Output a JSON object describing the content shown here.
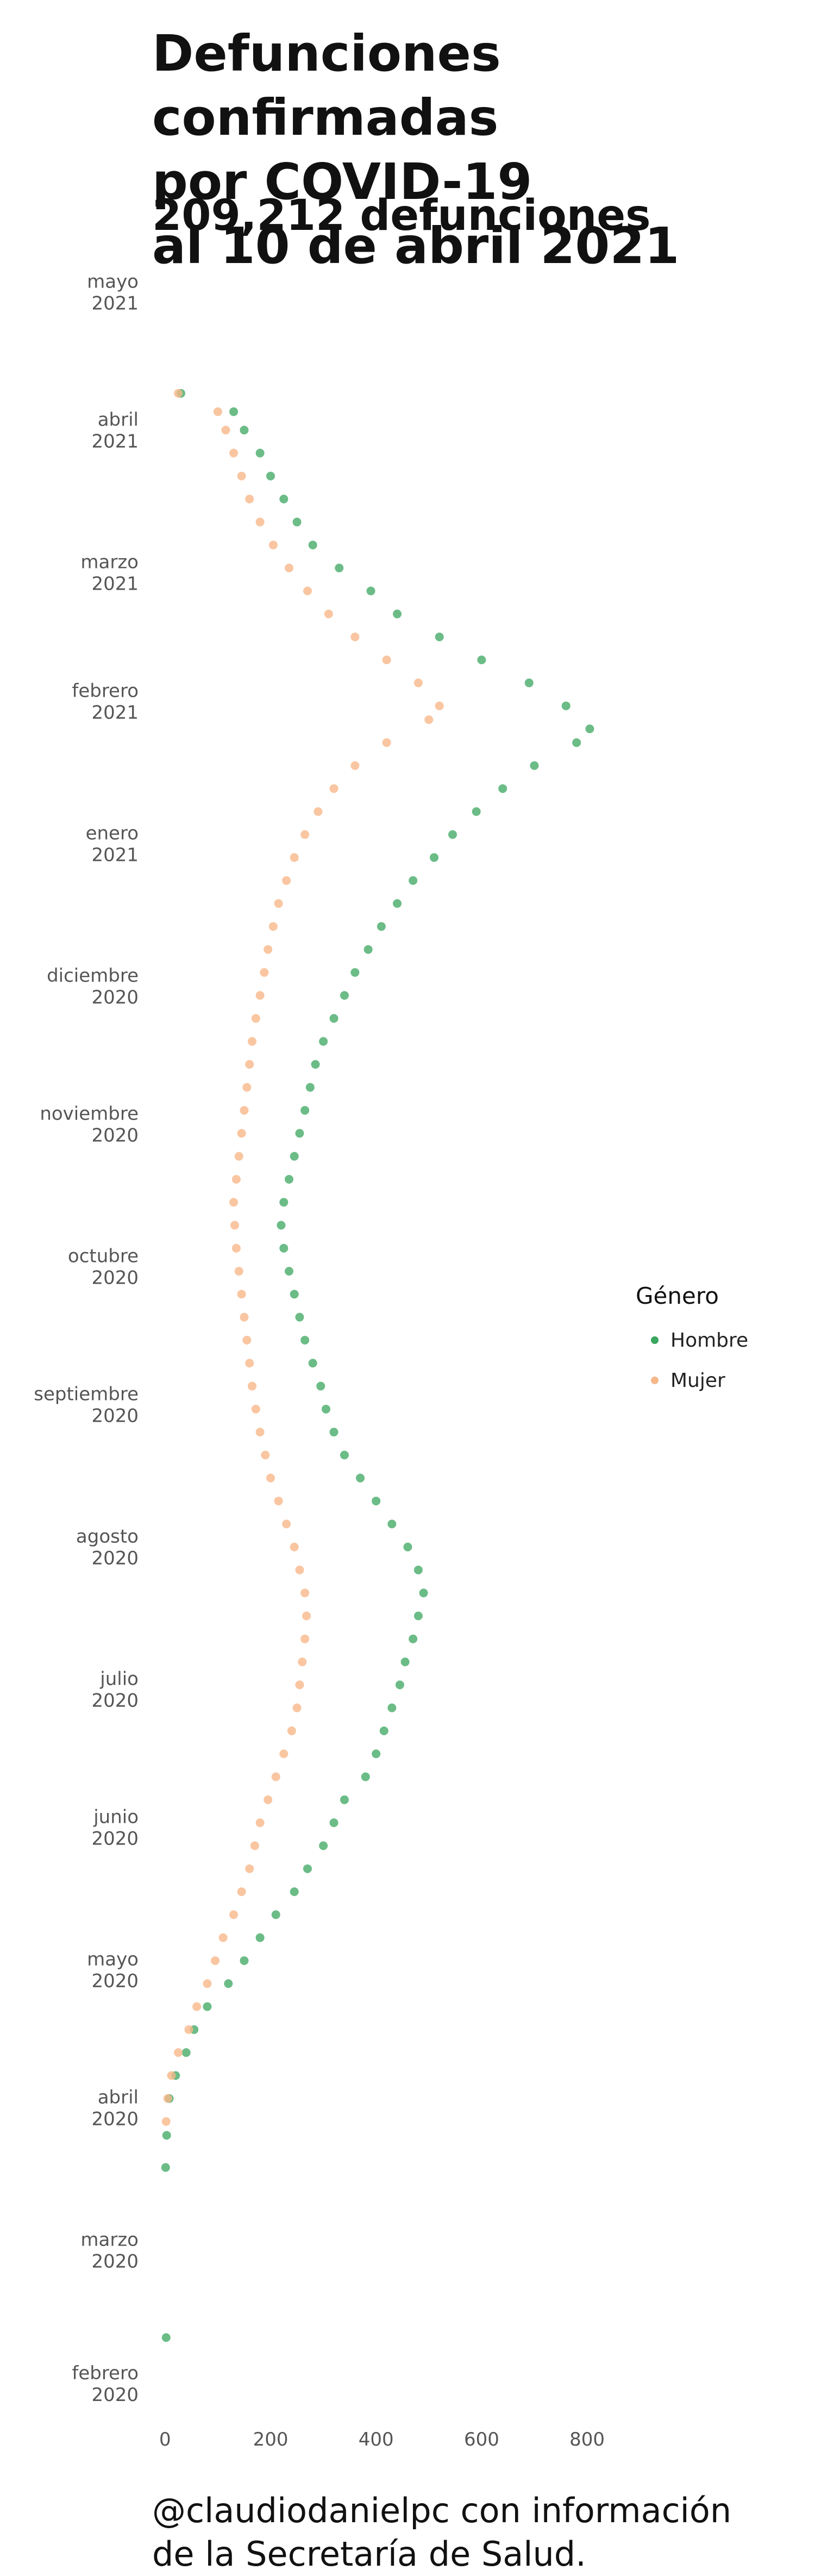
{
  "title": "Defunciones confirmadas por COVID-19 al 10 de abril 2021",
  "title_lines": [
    "Defunciones confirmadas",
    "por COVID-19",
    "al 10 de abril 2021"
  ],
  "subtitle": "209,212 defunciones",
  "caption_lines": [
    "@claudiodanielpc con información",
    "de la Secretaría de Salud."
  ],
  "colors": {
    "hombre": "#3aa65e",
    "mujer": "#f7b88a",
    "axis_text": "#555555"
  },
  "legend": {
    "title": "Género",
    "items": [
      "Hombre",
      "Mujer"
    ]
  },
  "chart_data": {
    "type": "scatter",
    "title": "",
    "xlabel": "",
    "ylabel": "",
    "xlim": [
      -40,
      820
    ],
    "ylim": [
      "2020-01-25",
      "2021-05-09"
    ],
    "x_ticks": [
      0,
      200,
      400,
      600,
      800
    ],
    "y_ticks": [
      {
        "date": "2020-02-01",
        "label": [
          "febrero",
          "2020"
        ]
      },
      {
        "date": "2020-03-01",
        "label": [
          "marzo",
          "2020"
        ]
      },
      {
        "date": "2020-04-01",
        "label": [
          "abril",
          "2020"
        ]
      },
      {
        "date": "2020-05-01",
        "label": [
          "mayo",
          "2020"
        ]
      },
      {
        "date": "2020-06-01",
        "label": [
          "junio",
          "2020"
        ]
      },
      {
        "date": "2020-07-01",
        "label": [
          "julio",
          "2020"
        ]
      },
      {
        "date": "2020-08-01",
        "label": [
          "agosto",
          "2020"
        ]
      },
      {
        "date": "2020-09-01",
        "label": [
          "septiembre",
          "2020"
        ]
      },
      {
        "date": "2020-10-01",
        "label": [
          "octubre",
          "2020"
        ]
      },
      {
        "date": "2020-11-01",
        "label": [
          "noviembre",
          "2020"
        ]
      },
      {
        "date": "2020-12-01",
        "label": [
          "diciembre",
          "2020"
        ]
      },
      {
        "date": "2021-01-01",
        "label": [
          "enero",
          "2021"
        ]
      },
      {
        "date": "2021-02-01",
        "label": [
          "febrero",
          "2021"
        ]
      },
      {
        "date": "2021-03-01",
        "label": [
          "marzo",
          "2021"
        ]
      },
      {
        "date": "2021-04-01",
        "label": [
          "abril",
          "2021"
        ]
      },
      {
        "date": "2021-05-01",
        "label": [
          "mayo",
          "2021"
        ]
      }
    ],
    "grid": false,
    "legend_position": "right",
    "series": [
      {
        "name": "Hombre",
        "points": [
          {
            "date": "2020-02-11",
            "deaths": 2
          },
          {
            "date": "2020-03-19",
            "deaths": 1
          },
          {
            "date": "2020-03-26",
            "deaths": 3
          },
          {
            "date": "2020-04-03",
            "deaths": 8
          },
          {
            "date": "2020-04-08",
            "deaths": 20
          },
          {
            "date": "2020-04-13",
            "deaths": 40
          },
          {
            "date": "2020-04-18",
            "deaths": 55
          },
          {
            "date": "2020-04-23",
            "deaths": 80
          },
          {
            "date": "2020-04-28",
            "deaths": 120
          },
          {
            "date": "2020-05-03",
            "deaths": 150
          },
          {
            "date": "2020-05-08",
            "deaths": 180
          },
          {
            "date": "2020-05-13",
            "deaths": 210
          },
          {
            "date": "2020-05-18",
            "deaths": 245
          },
          {
            "date": "2020-05-23",
            "deaths": 270
          },
          {
            "date": "2020-05-28",
            "deaths": 300
          },
          {
            "date": "2020-06-02",
            "deaths": 320
          },
          {
            "date": "2020-06-07",
            "deaths": 340
          },
          {
            "date": "2020-06-12",
            "deaths": 380
          },
          {
            "date": "2020-06-17",
            "deaths": 400
          },
          {
            "date": "2020-06-22",
            "deaths": 415
          },
          {
            "date": "2020-06-27",
            "deaths": 430
          },
          {
            "date": "2020-07-02",
            "deaths": 445
          },
          {
            "date": "2020-07-07",
            "deaths": 455
          },
          {
            "date": "2020-07-12",
            "deaths": 470
          },
          {
            "date": "2020-07-17",
            "deaths": 480
          },
          {
            "date": "2020-07-22",
            "deaths": 490
          },
          {
            "date": "2020-07-27",
            "deaths": 480
          },
          {
            "date": "2020-08-01",
            "deaths": 460
          },
          {
            "date": "2020-08-06",
            "deaths": 430
          },
          {
            "date": "2020-08-11",
            "deaths": 400
          },
          {
            "date": "2020-08-16",
            "deaths": 370
          },
          {
            "date": "2020-08-21",
            "deaths": 340
          },
          {
            "date": "2020-08-26",
            "deaths": 320
          },
          {
            "date": "2020-08-31",
            "deaths": 305
          },
          {
            "date": "2020-09-05",
            "deaths": 295
          },
          {
            "date": "2020-09-10",
            "deaths": 280
          },
          {
            "date": "2020-09-15",
            "deaths": 265
          },
          {
            "date": "2020-09-20",
            "deaths": 255
          },
          {
            "date": "2020-09-25",
            "deaths": 245
          },
          {
            "date": "2020-09-30",
            "deaths": 235
          },
          {
            "date": "2020-10-05",
            "deaths": 225
          },
          {
            "date": "2020-10-10",
            "deaths": 220
          },
          {
            "date": "2020-10-15",
            "deaths": 225
          },
          {
            "date": "2020-10-20",
            "deaths": 235
          },
          {
            "date": "2020-10-25",
            "deaths": 245
          },
          {
            "date": "2020-10-30",
            "deaths": 255
          },
          {
            "date": "2020-11-04",
            "deaths": 265
          },
          {
            "date": "2020-11-09",
            "deaths": 275
          },
          {
            "date": "2020-11-14",
            "deaths": 285
          },
          {
            "date": "2020-11-19",
            "deaths": 300
          },
          {
            "date": "2020-11-24",
            "deaths": 320
          },
          {
            "date": "2020-11-29",
            "deaths": 340
          },
          {
            "date": "2020-12-04",
            "deaths": 360
          },
          {
            "date": "2020-12-09",
            "deaths": 385
          },
          {
            "date": "2020-12-14",
            "deaths": 410
          },
          {
            "date": "2020-12-19",
            "deaths": 440
          },
          {
            "date": "2020-12-24",
            "deaths": 470
          },
          {
            "date": "2020-12-29",
            "deaths": 510
          },
          {
            "date": "2021-01-03",
            "deaths": 545
          },
          {
            "date": "2021-01-08",
            "deaths": 590
          },
          {
            "date": "2021-01-13",
            "deaths": 640
          },
          {
            "date": "2021-01-18",
            "deaths": 700
          },
          {
            "date": "2021-01-23",
            "deaths": 780
          },
          {
            "date": "2021-01-26",
            "deaths": 805
          },
          {
            "date": "2021-01-31",
            "deaths": 760
          },
          {
            "date": "2021-02-05",
            "deaths": 690
          },
          {
            "date": "2021-02-10",
            "deaths": 600
          },
          {
            "date": "2021-02-15",
            "deaths": 520
          },
          {
            "date": "2021-02-20",
            "deaths": 440
          },
          {
            "date": "2021-02-25",
            "deaths": 390
          },
          {
            "date": "2021-03-02",
            "deaths": 330
          },
          {
            "date": "2021-03-07",
            "deaths": 280
          },
          {
            "date": "2021-03-12",
            "deaths": 250
          },
          {
            "date": "2021-03-17",
            "deaths": 225
          },
          {
            "date": "2021-03-22",
            "deaths": 200
          },
          {
            "date": "2021-03-27",
            "deaths": 180
          },
          {
            "date": "2021-04-01",
            "deaths": 150
          },
          {
            "date": "2021-04-05",
            "deaths": 130
          },
          {
            "date": "2021-04-09",
            "deaths": 30
          }
        ]
      },
      {
        "name": "Mujer",
        "points": [
          {
            "date": "2020-03-29",
            "deaths": 2
          },
          {
            "date": "2020-04-03",
            "deaths": 5
          },
          {
            "date": "2020-04-08",
            "deaths": 12
          },
          {
            "date": "2020-04-13",
            "deaths": 25
          },
          {
            "date": "2020-04-18",
            "deaths": 45
          },
          {
            "date": "2020-04-23",
            "deaths": 60
          },
          {
            "date": "2020-04-28",
            "deaths": 80
          },
          {
            "date": "2020-05-03",
            "deaths": 95
          },
          {
            "date": "2020-05-08",
            "deaths": 110
          },
          {
            "date": "2020-05-13",
            "deaths": 130
          },
          {
            "date": "2020-05-18",
            "deaths": 145
          },
          {
            "date": "2020-05-23",
            "deaths": 160
          },
          {
            "date": "2020-05-28",
            "deaths": 170
          },
          {
            "date": "2020-06-02",
            "deaths": 180
          },
          {
            "date": "2020-06-07",
            "deaths": 195
          },
          {
            "date": "2020-06-12",
            "deaths": 210
          },
          {
            "date": "2020-06-17",
            "deaths": 225
          },
          {
            "date": "2020-06-22",
            "deaths": 240
          },
          {
            "date": "2020-06-27",
            "deaths": 250
          },
          {
            "date": "2020-07-02",
            "deaths": 255
          },
          {
            "date": "2020-07-07",
            "deaths": 260
          },
          {
            "date": "2020-07-12",
            "deaths": 265
          },
          {
            "date": "2020-07-17",
            "deaths": 268
          },
          {
            "date": "2020-07-22",
            "deaths": 265
          },
          {
            "date": "2020-07-27",
            "deaths": 255
          },
          {
            "date": "2020-08-01",
            "deaths": 245
          },
          {
            "date": "2020-08-06",
            "deaths": 230
          },
          {
            "date": "2020-08-11",
            "deaths": 215
          },
          {
            "date": "2020-08-16",
            "deaths": 200
          },
          {
            "date": "2020-08-21",
            "deaths": 190
          },
          {
            "date": "2020-08-26",
            "deaths": 180
          },
          {
            "date": "2020-08-31",
            "deaths": 172
          },
          {
            "date": "2020-09-05",
            "deaths": 165
          },
          {
            "date": "2020-09-10",
            "deaths": 160
          },
          {
            "date": "2020-09-15",
            "deaths": 155
          },
          {
            "date": "2020-09-20",
            "deaths": 150
          },
          {
            "date": "2020-09-25",
            "deaths": 145
          },
          {
            "date": "2020-09-30",
            "deaths": 140
          },
          {
            "date": "2020-10-05",
            "deaths": 135
          },
          {
            "date": "2020-10-10",
            "deaths": 132
          },
          {
            "date": "2020-10-15",
            "deaths": 130
          },
          {
            "date": "2020-10-20",
            "deaths": 135
          },
          {
            "date": "2020-10-25",
            "deaths": 140
          },
          {
            "date": "2020-10-30",
            "deaths": 145
          },
          {
            "date": "2020-11-04",
            "deaths": 150
          },
          {
            "date": "2020-11-09",
            "deaths": 155
          },
          {
            "date": "2020-11-14",
            "deaths": 160
          },
          {
            "date": "2020-11-19",
            "deaths": 165
          },
          {
            "date": "2020-11-24",
            "deaths": 172
          },
          {
            "date": "2020-11-29",
            "deaths": 180
          },
          {
            "date": "2020-12-04",
            "deaths": 188
          },
          {
            "date": "2020-12-09",
            "deaths": 195
          },
          {
            "date": "2020-12-14",
            "deaths": 205
          },
          {
            "date": "2020-12-19",
            "deaths": 215
          },
          {
            "date": "2020-12-24",
            "deaths": 230
          },
          {
            "date": "2020-12-29",
            "deaths": 245
          },
          {
            "date": "2021-01-03",
            "deaths": 265
          },
          {
            "date": "2021-01-08",
            "deaths": 290
          },
          {
            "date": "2021-01-13",
            "deaths": 320
          },
          {
            "date": "2021-01-18",
            "deaths": 360
          },
          {
            "date": "2021-01-23",
            "deaths": 420
          },
          {
            "date": "2021-01-28",
            "deaths": 500
          },
          {
            "date": "2021-01-31",
            "deaths": 520
          },
          {
            "date": "2021-02-05",
            "deaths": 480
          },
          {
            "date": "2021-02-10",
            "deaths": 420
          },
          {
            "date": "2021-02-15",
            "deaths": 360
          },
          {
            "date": "2021-02-20",
            "deaths": 310
          },
          {
            "date": "2021-02-25",
            "deaths": 270
          },
          {
            "date": "2021-03-02",
            "deaths": 235
          },
          {
            "date": "2021-03-07",
            "deaths": 205
          },
          {
            "date": "2021-03-12",
            "deaths": 180
          },
          {
            "date": "2021-03-17",
            "deaths": 160
          },
          {
            "date": "2021-03-22",
            "deaths": 145
          },
          {
            "date": "2021-03-27",
            "deaths": 130
          },
          {
            "date": "2021-04-01",
            "deaths": 115
          },
          {
            "date": "2021-04-05",
            "deaths": 100
          },
          {
            "date": "2021-04-09",
            "deaths": 25
          }
        ]
      }
    ]
  }
}
